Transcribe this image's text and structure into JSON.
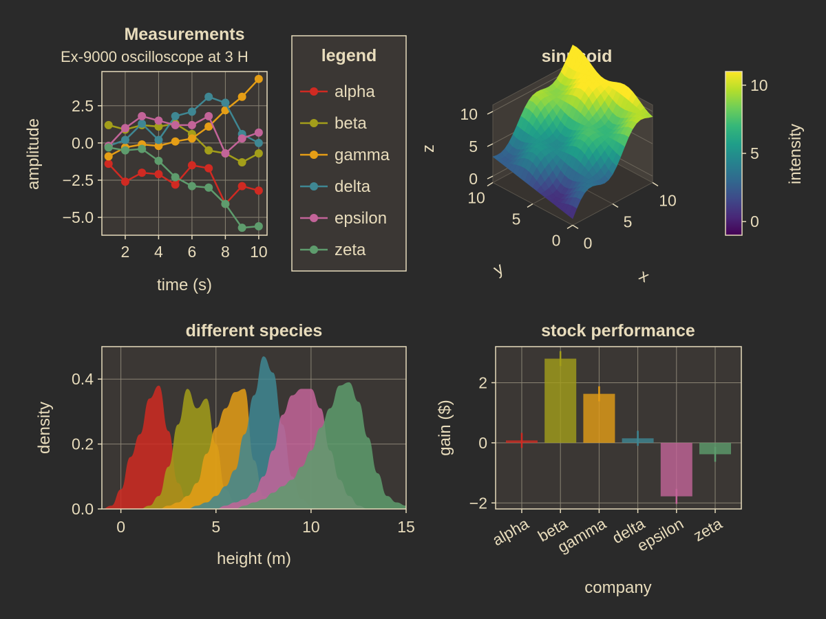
{
  "colors": {
    "background": "#2a2a2a",
    "axis_bg": "#3b3734",
    "text": "#e8dcbc",
    "grid": "#8b8474",
    "frame": "#e8dcbc",
    "series": [
      "#d02a22",
      "#a39e1a",
      "#e59e16",
      "#3f8793",
      "#c36499",
      "#5e9c6d"
    ]
  },
  "chart_data": [
    {
      "type": "line",
      "title": "Measurements",
      "subtitle": "Ex-9000 oscilloscope at 3 H",
      "xlabel": "time (s)",
      "ylabel": "amplitude",
      "xlim": [
        0.6,
        10.5
      ],
      "ylim": [
        -6.2,
        4.8
      ],
      "xticks": [
        2,
        4,
        6,
        8,
        10
      ],
      "xtick_labels": [
        "2",
        "4",
        "6",
        "8",
        "10"
      ],
      "yticks": [
        -5.0,
        -2.5,
        0.0,
        2.5
      ],
      "ytick_labels": [
        "−5.0",
        "−2.5",
        "0.0",
        "2.5"
      ],
      "grid": true,
      "x": [
        1,
        2,
        3,
        4,
        5,
        6,
        7,
        8,
        9,
        10
      ],
      "series": [
        {
          "name": "alpha",
          "values": [
            -1.4,
            -2.6,
            -2.0,
            -2.1,
            -2.8,
            -1.5,
            -1.7,
            -4.1,
            -2.9,
            -3.2
          ]
        },
        {
          "name": "beta",
          "values": [
            1.2,
            0.9,
            1.2,
            1.1,
            1.3,
            0.6,
            -0.5,
            -0.7,
            -1.3,
            -0.7
          ]
        },
        {
          "name": "gamma",
          "values": [
            -0.9,
            -0.3,
            -0.1,
            -0.2,
            0.1,
            0.3,
            1.1,
            2.2,
            3.1,
            4.3
          ]
        },
        {
          "name": "delta",
          "values": [
            -0.2,
            0.2,
            1.3,
            0.2,
            1.8,
            2.1,
            3.1,
            2.7,
            0.6,
            0.0
          ]
        },
        {
          "name": "epsilon",
          "values": [
            -0.2,
            1.0,
            1.8,
            1.5,
            1.2,
            1.2,
            1.8,
            -0.7,
            0.3,
            0.7
          ]
        },
        {
          "name": "zeta",
          "values": [
            -0.3,
            -0.5,
            -0.4,
            -1.2,
            -2.3,
            -2.9,
            -3.0,
            -4.1,
            -5.7,
            -5.6
          ]
        }
      ]
    },
    {
      "type": "surface",
      "title": "sinusoid",
      "xlabel": "x",
      "ylabel": "y",
      "zlabel": "z",
      "xlim": [
        0,
        10
      ],
      "ylim": [
        0,
        10
      ],
      "zlim": [
        -1,
        11
      ],
      "xticks": [
        0,
        5,
        10
      ],
      "xtick_labels": [
        "0",
        "5",
        "10"
      ],
      "yticks": [
        0,
        5,
        10
      ],
      "ytick_labels": [
        "0",
        "5",
        "10"
      ],
      "zticks": [
        0,
        5,
        10
      ],
      "ztick_labels": [
        "0",
        "5",
        "10"
      ],
      "function": "z = x + y*0.3 + sin(x)*cos(y)*1.5",
      "colorbar": {
        "label": "intensity",
        "range": [
          -1,
          11
        ],
        "ticks": [
          0,
          5,
          10
        ],
        "tick_labels": [
          "0",
          "5",
          "10"
        ],
        "colormap": "viridis"
      }
    },
    {
      "type": "area",
      "title": "different species",
      "xlabel": "height (m)",
      "ylabel": "density",
      "xlim": [
        -1,
        15
      ],
      "ylim": [
        0,
        0.5
      ],
      "xticks": [
        0,
        5,
        10,
        15
      ],
      "xtick_labels": [
        "0",
        "5",
        "10",
        "15"
      ],
      "yticks": [
        0.0,
        0.2,
        0.4
      ],
      "ytick_labels": [
        "0.0",
        "0.2",
        "0.4"
      ],
      "grid": true,
      "x": [
        -1,
        -0.5,
        0,
        0.5,
        1,
        1.5,
        2,
        2.5,
        3,
        3.5,
        4,
        4.5,
        5,
        5.5,
        6,
        6.5,
        7,
        7.5,
        8,
        8.5,
        9,
        9.5,
        10,
        10.5,
        11,
        11.5,
        12,
        12.5,
        13,
        13.5,
        14,
        14.5,
        15
      ],
      "series": [
        {
          "name": "alpha",
          "values": [
            0,
            0.01,
            0.06,
            0.16,
            0.23,
            0.34,
            0.38,
            0.24,
            0.08,
            0.02,
            0.01,
            0,
            0,
            0,
            0,
            0,
            0,
            0,
            0,
            0,
            0,
            0,
            0,
            0,
            0,
            0,
            0,
            0,
            0,
            0,
            0,
            0,
            0
          ]
        },
        {
          "name": "beta",
          "values": [
            0,
            0,
            0,
            0,
            0,
            0.01,
            0.04,
            0.13,
            0.26,
            0.37,
            0.31,
            0.34,
            0.2,
            0.06,
            0.02,
            0,
            0,
            0,
            0,
            0,
            0,
            0,
            0,
            0,
            0,
            0,
            0,
            0,
            0,
            0,
            0,
            0,
            0
          ]
        },
        {
          "name": "gamma",
          "values": [
            0,
            0,
            0,
            0,
            0,
            0,
            0,
            0.01,
            0.02,
            0.04,
            0.08,
            0.17,
            0.25,
            0.31,
            0.36,
            0.37,
            0.15,
            0.04,
            0.01,
            0,
            0,
            0,
            0,
            0,
            0,
            0,
            0,
            0,
            0,
            0,
            0,
            0,
            0
          ]
        },
        {
          "name": "delta",
          "values": [
            0,
            0,
            0,
            0,
            0,
            0,
            0,
            0,
            0,
            0,
            0.01,
            0.02,
            0.04,
            0.07,
            0.12,
            0.23,
            0.35,
            0.47,
            0.42,
            0.26,
            0.1,
            0.03,
            0.01,
            0,
            0,
            0,
            0,
            0,
            0,
            0,
            0,
            0,
            0
          ]
        },
        {
          "name": "epsilon",
          "values": [
            0,
            0,
            0,
            0,
            0,
            0,
            0,
            0,
            0,
            0,
            0,
            0,
            0,
            0.01,
            0.02,
            0.03,
            0.05,
            0.1,
            0.18,
            0.29,
            0.35,
            0.37,
            0.37,
            0.31,
            0.18,
            0.09,
            0.04,
            0.01,
            0,
            0,
            0,
            0,
            0
          ]
        },
        {
          "name": "zeta",
          "values": [
            0,
            0,
            0,
            0,
            0,
            0,
            0,
            0,
            0,
            0,
            0,
            0,
            0,
            0,
            0,
            0.01,
            0.02,
            0.03,
            0.05,
            0.07,
            0.09,
            0.13,
            0.18,
            0.25,
            0.31,
            0.38,
            0.39,
            0.33,
            0.22,
            0.11,
            0.04,
            0.02,
            0.01
          ]
        }
      ]
    },
    {
      "type": "bar",
      "title": "stock performance",
      "xlabel": "company",
      "ylabel": "gain ($)",
      "ylim": [
        -2.2,
        3.2
      ],
      "yticks": [
        -2,
        0,
        2
      ],
      "ytick_labels": [
        "−2",
        "0",
        "2"
      ],
      "grid": true,
      "categories": [
        "alpha",
        "beta",
        "gamma",
        "delta",
        "epsilon",
        "zeta"
      ],
      "values": [
        0.08,
        2.8,
        1.63,
        0.15,
        -1.78,
        -0.38
      ],
      "errors": [
        0.25,
        0.25,
        0.25,
        0.25,
        0.25,
        0.25
      ]
    }
  ],
  "legend": {
    "title": "legend",
    "entries": [
      "alpha",
      "beta",
      "gamma",
      "delta",
      "epsilon",
      "zeta"
    ],
    "placement": "between top panels"
  }
}
